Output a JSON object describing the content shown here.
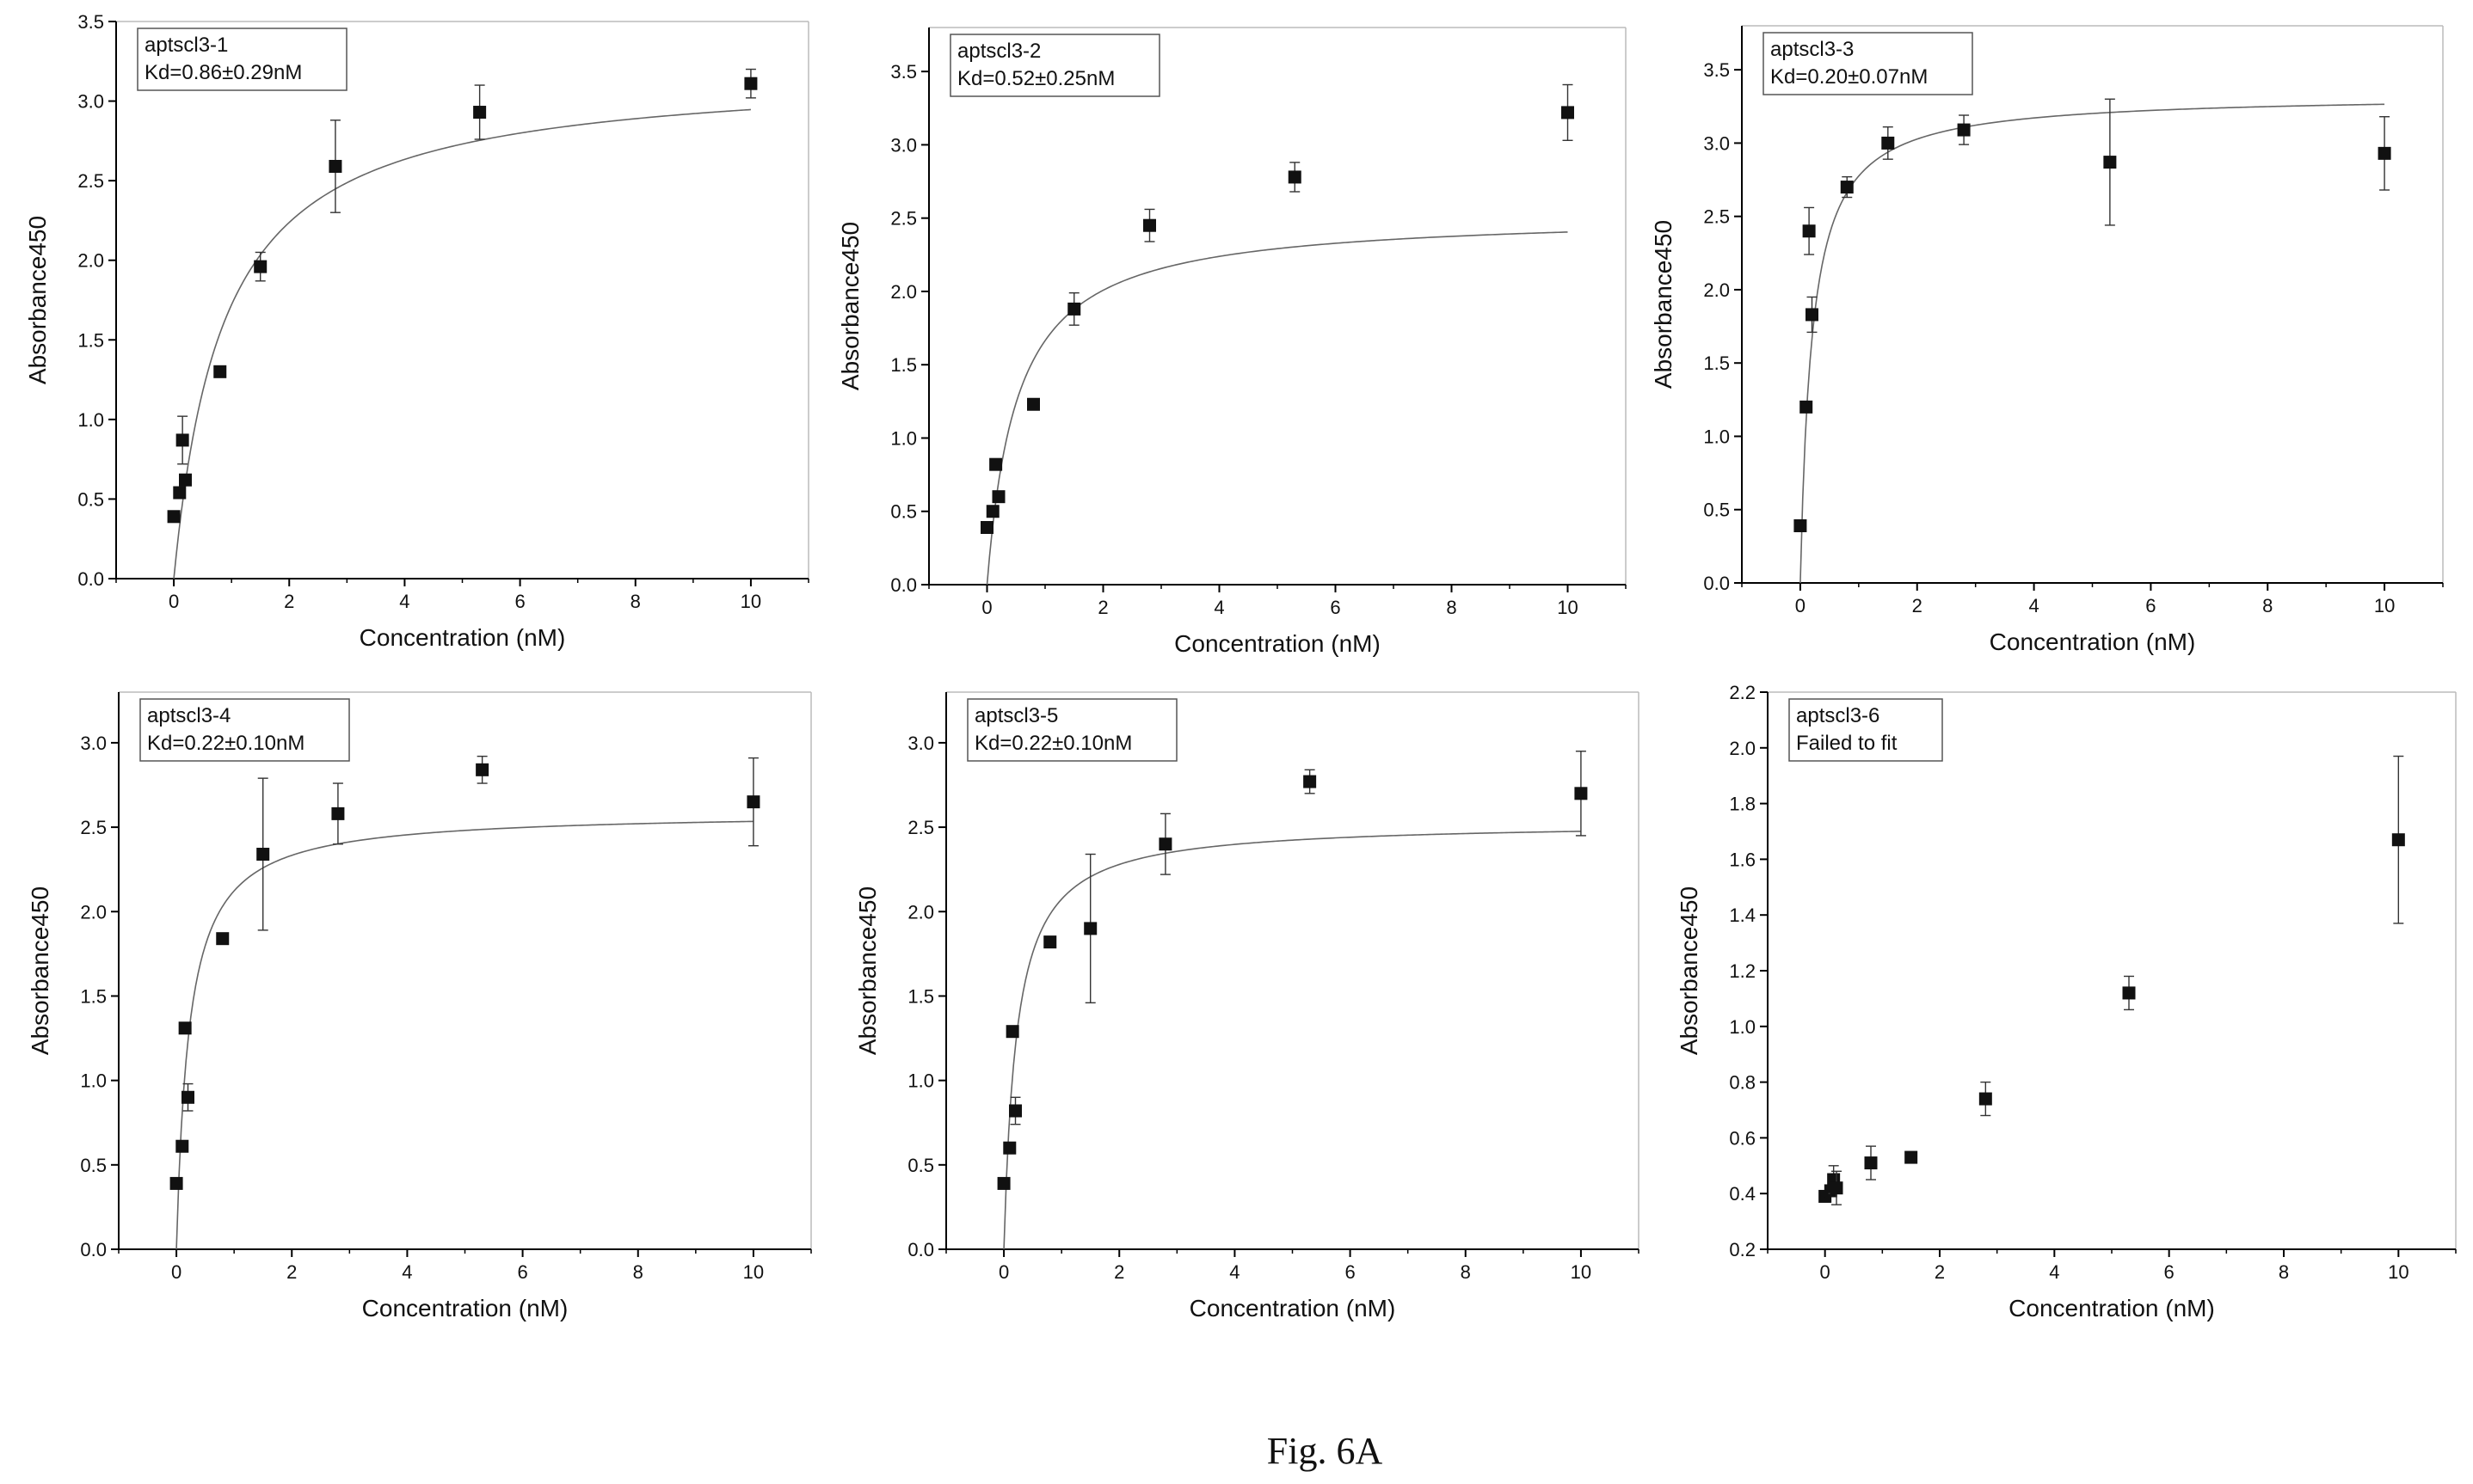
{
  "figure_caption": "Fig. 6A",
  "chart_data": [
    {
      "type": "scatter",
      "legend": [
        "aptscl3-1",
        "Kd=0.86±0.29nM"
      ],
      "xlabel": "Concentration (nM)",
      "ylabel": "Absorbance450",
      "xlim": [
        -1,
        11
      ],
      "ylim": [
        0,
        3.5
      ],
      "xticks": [
        0,
        2,
        4,
        6,
        8,
        10
      ],
      "xtick_labels": [
        "0",
        "2",
        "4",
        "6",
        "8",
        "10"
      ],
      "yticks": [
        0,
        0.5,
        1,
        1.5,
        2,
        2.5,
        3,
        3.5
      ],
      "ytick_labels": [
        "0.0",
        "0.5",
        "1.0",
        "1.5",
        "2.0",
        "2.5",
        "3.0",
        "3.5"
      ],
      "x": [
        0,
        0.1,
        0.15,
        0.2,
        0.8,
        1.5,
        2.8,
        5.3,
        10
      ],
      "y": [
        0.39,
        0.54,
        0.87,
        0.62,
        1.3,
        1.96,
        2.59,
        2.93,
        3.11
      ],
      "yerr": [
        0.0,
        0.03,
        0.15,
        0.03,
        0.02,
        0.09,
        0.29,
        0.17,
        0.09
      ],
      "fit": {
        "bmax": 3.2,
        "kd": 0.86,
        "x0": 0,
        "x1": 10
      }
    },
    {
      "type": "scatter",
      "legend": [
        "aptscl3-2",
        "Kd=0.52±0.25nM"
      ],
      "xlabel": "Concentration (nM)",
      "ylabel": "Absorbance450",
      "xlim": [
        -1,
        11
      ],
      "ylim": [
        0,
        3.8
      ],
      "xticks": [
        0,
        2,
        4,
        6,
        8,
        10
      ],
      "xtick_labels": [
        "0",
        "2",
        "4",
        "6",
        "8",
        "10"
      ],
      "yticks": [
        0,
        0.5,
        1,
        1.5,
        2,
        2.5,
        3,
        3.5
      ],
      "ytick_labels": [
        "0.0",
        "0.5",
        "1.0",
        "1.5",
        "2.0",
        "2.5",
        "3.0",
        "3.5"
      ],
      "x": [
        0,
        0.1,
        0.15,
        0.2,
        0.8,
        1.5,
        2.8,
        5.3,
        10
      ],
      "y": [
        0.39,
        0.5,
        0.82,
        0.6,
        1.23,
        1.88,
        2.45,
        2.78,
        3.22
      ],
      "yerr": [
        0.0,
        0.02,
        0.02,
        0.02,
        0.02,
        0.11,
        0.11,
        0.1,
        0.19
      ],
      "fit": {
        "bmax": 2.53,
        "kd": 0.52,
        "x0": 0,
        "x1": 10
      }
    },
    {
      "type": "scatter",
      "legend": [
        "aptscl3-3",
        "Kd=0.20±0.07nM"
      ],
      "xlabel": "Concentration (nM)",
      "ylabel": "Absorbance450",
      "xlim": [
        -1,
        11
      ],
      "ylim": [
        0,
        3.8
      ],
      "xticks": [
        0,
        2,
        4,
        6,
        8,
        10
      ],
      "xtick_labels": [
        "0",
        "2",
        "4",
        "6",
        "8",
        "10"
      ],
      "yticks": [
        0,
        0.5,
        1,
        1.5,
        2,
        2.5,
        3,
        3.5
      ],
      "ytick_labels": [
        "0.0",
        "0.5",
        "1.0",
        "1.5",
        "2.0",
        "2.5",
        "3.0",
        "3.5"
      ],
      "x": [
        0,
        0.1,
        0.15,
        0.2,
        0.8,
        1.5,
        2.8,
        5.3,
        10
      ],
      "y": [
        0.39,
        1.2,
        2.4,
        1.83,
        2.7,
        3.0,
        3.09,
        2.87,
        2.93
      ],
      "yerr": [
        0.0,
        0.02,
        0.16,
        0.12,
        0.07,
        0.11,
        0.1,
        0.43,
        0.25
      ],
      "fit": {
        "bmax": 3.33,
        "kd": 0.2,
        "x0": 0,
        "x1": 10
      }
    },
    {
      "type": "scatter",
      "legend": [
        "aptscl3-4",
        "Kd=0.22±0.10nM"
      ],
      "xlabel": "Concentration (nM)",
      "ylabel": "Absorbance450",
      "xlim": [
        -1,
        11
      ],
      "ylim": [
        0,
        3.3
      ],
      "xticks": [
        0,
        2,
        4,
        6,
        8,
        10
      ],
      "xtick_labels": [
        "0",
        "2",
        "4",
        "6",
        "8",
        "10"
      ],
      "yticks": [
        0,
        0.5,
        1,
        1.5,
        2,
        2.5,
        3
      ],
      "ytick_labels": [
        "0.0",
        "0.5",
        "1.0",
        "1.5",
        "2.0",
        "2.5",
        "3.0"
      ],
      "x": [
        0,
        0.1,
        0.15,
        0.2,
        0.8,
        1.5,
        2.8,
        5.3,
        10
      ],
      "y": [
        0.39,
        0.61,
        1.31,
        0.9,
        1.84,
        2.34,
        2.58,
        2.84,
        2.65
      ],
      "yerr": [
        0.0,
        0.02,
        0.02,
        0.08,
        0.02,
        0.45,
        0.18,
        0.08,
        0.26
      ],
      "fit": {
        "bmax": 2.59,
        "kd": 0.22,
        "x0": 0,
        "x1": 10
      }
    },
    {
      "type": "scatter",
      "legend": [
        "aptscl3-5",
        "Kd=0.22±0.10nM"
      ],
      "xlabel": "Concentration (nM)",
      "ylabel": "Absorbance450",
      "xlim": [
        -1,
        11
      ],
      "ylim": [
        0,
        3.3
      ],
      "xticks": [
        0,
        2,
        4,
        6,
        8,
        10
      ],
      "xtick_labels": [
        "0",
        "2",
        "4",
        "6",
        "8",
        "10"
      ],
      "yticks": [
        0,
        0.5,
        1,
        1.5,
        2,
        2.5,
        3
      ],
      "ytick_labels": [
        "0.0",
        "0.5",
        "1.0",
        "1.5",
        "2.0",
        "2.5",
        "3.0"
      ],
      "x": [
        0,
        0.1,
        0.15,
        0.2,
        0.8,
        1.5,
        2.8,
        5.3,
        10
      ],
      "y": [
        0.39,
        0.6,
        1.29,
        0.82,
        1.82,
        1.9,
        2.4,
        2.77,
        2.7
      ],
      "yerr": [
        0.0,
        0.02,
        0.02,
        0.08,
        0.02,
        0.44,
        0.18,
        0.07,
        0.25
      ],
      "fit": {
        "bmax": 2.53,
        "kd": 0.22,
        "x0": 0,
        "x1": 10
      }
    },
    {
      "type": "scatter",
      "legend": [
        "aptscl3-6",
        "Failed to fit"
      ],
      "xlabel": "Concentration (nM)",
      "ylabel": "Absorbance450",
      "xlim": [
        -1,
        11
      ],
      "ylim": [
        0.2,
        2.2
      ],
      "xticks": [
        0,
        2,
        4,
        6,
        8,
        10
      ],
      "xtick_labels": [
        "0",
        "2",
        "4",
        "6",
        "8",
        "10"
      ],
      "yticks": [
        0.2,
        0.4,
        0.6,
        0.8,
        1.0,
        1.2,
        1.4,
        1.6,
        1.8,
        2.0,
        2.2
      ],
      "ytick_labels": [
        "0.2",
        "0.4",
        "0.6",
        "0.8",
        "1.0",
        "1.2",
        "1.4",
        "1.6",
        "1.8",
        "2.0",
        "2.2"
      ],
      "x": [
        0,
        0.1,
        0.15,
        0.2,
        0.8,
        1.5,
        2.8,
        5.3,
        10
      ],
      "y": [
        0.39,
        0.41,
        0.45,
        0.42,
        0.51,
        0.53,
        0.74,
        1.12,
        1.67
      ],
      "yerr": [
        0.01,
        0.02,
        0.05,
        0.06,
        0.06,
        0.02,
        0.06,
        0.06,
        0.3
      ],
      "fit": null
    }
  ]
}
